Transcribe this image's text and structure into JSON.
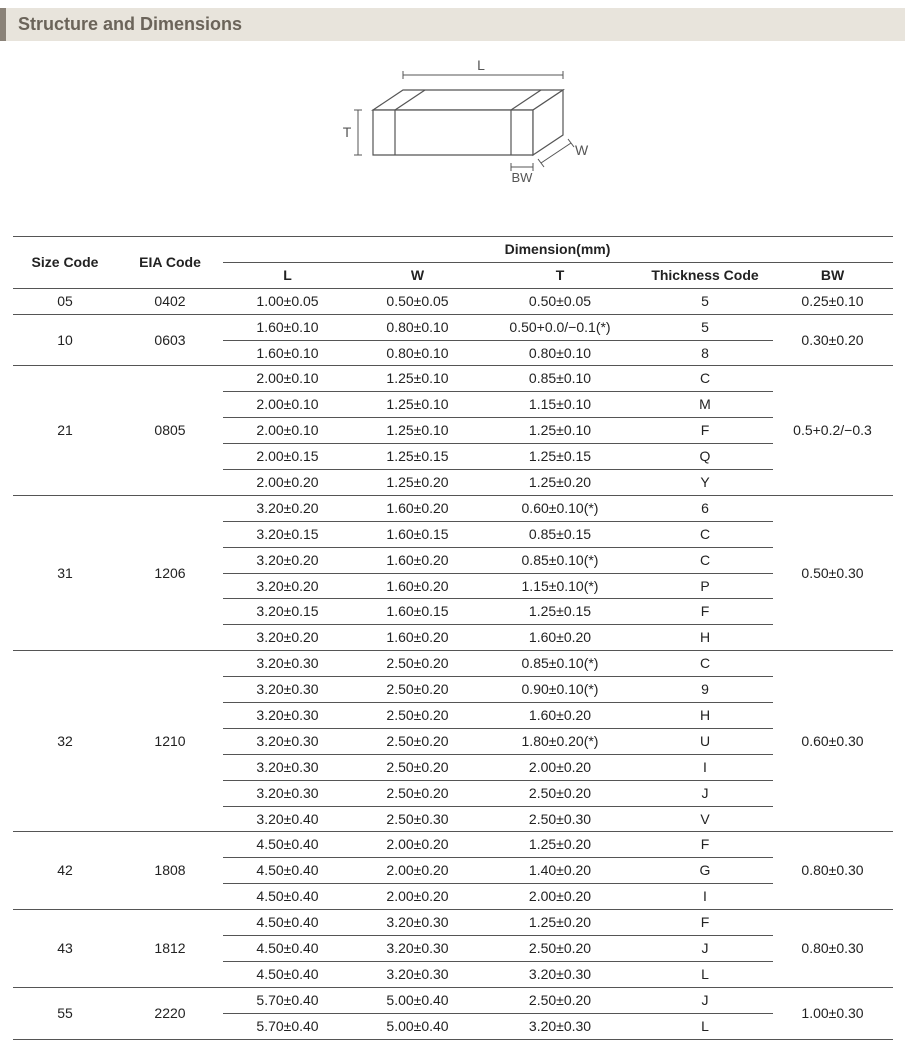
{
  "section_title": "Structure and Dimensions",
  "diagram": {
    "labels": {
      "L": "L",
      "W": "W",
      "T": "T",
      "BW": "BW"
    },
    "outline_color": "#555555",
    "fill_color": "#ffffff",
    "arrow_color": "#555555",
    "label_color": "#555555",
    "label_fontsize": 14
  },
  "table": {
    "header": {
      "size_code": "Size Code",
      "eia_code": "EIA Code",
      "dimension_header": "Dimension(mm)",
      "L": "L",
      "W": "W",
      "T": "T",
      "thickness_code": "Thickness  Code",
      "BW": "BW"
    },
    "groups": [
      {
        "size_code": "05",
        "eia_code": "0402",
        "bw": "0.25±0.10",
        "rows": [
          {
            "L": "1.00±0.05",
            "W": "0.50±0.05",
            "T": "0.50±0.05",
            "tk": "5"
          }
        ]
      },
      {
        "size_code": "10",
        "eia_code": "0603",
        "bw": "0.30±0.20",
        "rows": [
          {
            "L": "1.60±0.10",
            "W": "0.80±0.10",
            "T": "0.50+0.0/−0.1(*)",
            "tk": "5"
          },
          {
            "L": "1.60±0.10",
            "W": "0.80±0.10",
            "T": "0.80±0.10",
            "tk": "8"
          }
        ]
      },
      {
        "size_code": "21",
        "eia_code": "0805",
        "bw": "0.5+0.2/−0.3",
        "rows": [
          {
            "L": "2.00±0.10",
            "W": "1.25±0.10",
            "T": "0.85±0.10",
            "tk": "C"
          },
          {
            "L": "2.00±0.10",
            "W": "1.25±0.10",
            "T": "1.15±0.10",
            "tk": "M"
          },
          {
            "L": "2.00±0.10",
            "W": "1.25±0.10",
            "T": "1.25±0.10",
            "tk": "F"
          },
          {
            "L": "2.00±0.15",
            "W": "1.25±0.15",
            "T": "1.25±0.15",
            "tk": "Q"
          },
          {
            "L": "2.00±0.20",
            "W": "1.25±0.20",
            "T": "1.25±0.20",
            "tk": "Y"
          }
        ]
      },
      {
        "size_code": "31",
        "eia_code": "1206",
        "bw": "0.50±0.30",
        "rows": [
          {
            "L": "3.20±0.20",
            "W": "1.60±0.20",
            "T": "0.60±0.10(*)",
            "tk": "6"
          },
          {
            "L": "3.20±0.15",
            "W": "1.60±0.15",
            "T": "0.85±0.15",
            "tk": "C"
          },
          {
            "L": "3.20±0.20",
            "W": "1.60±0.20",
            "T": "0.85±0.10(*)",
            "tk": "C"
          },
          {
            "L": "3.20±0.20",
            "W": "1.60±0.20",
            "T": "1.15±0.10(*)",
            "tk": "P"
          },
          {
            "L": "3.20±0.15",
            "W": "1.60±0.15",
            "T": "1.25±0.15",
            "tk": "F"
          },
          {
            "L": "3.20±0.20",
            "W": "1.60±0.20",
            "T": "1.60±0.20",
            "tk": "H"
          }
        ]
      },
      {
        "size_code": "32",
        "eia_code": "1210",
        "bw": "0.60±0.30",
        "rows": [
          {
            "L": "3.20±0.30",
            "W": "2.50±0.20",
            "T": "0.85±0.10(*)",
            "tk": "C"
          },
          {
            "L": "3.20±0.30",
            "W": "2.50±0.20",
            "T": "0.90±0.10(*)",
            "tk": "9"
          },
          {
            "L": "3.20±0.30",
            "W": "2.50±0.20",
            "T": "1.60±0.20",
            "tk": "H"
          },
          {
            "L": "3.20±0.30",
            "W": "2.50±0.20",
            "T": "1.80±0.20(*)",
            "tk": "U"
          },
          {
            "L": "3.20±0.30",
            "W": "2.50±0.20",
            "T": "2.00±0.20",
            "tk": "I"
          },
          {
            "L": "3.20±0.30",
            "W": "2.50±0.20",
            "T": "2.50±0.20",
            "tk": "J"
          },
          {
            "L": "3.20±0.40",
            "W": "2.50±0.30",
            "T": "2.50±0.30",
            "tk": "V"
          }
        ]
      },
      {
        "size_code": "42",
        "eia_code": "1808",
        "bw": "0.80±0.30",
        "rows": [
          {
            "L": "4.50±0.40",
            "W": "2.00±0.20",
            "T": "1.25±0.20",
            "tk": "F"
          },
          {
            "L": "4.50±0.40",
            "W": "2.00±0.20",
            "T": "1.40±0.20",
            "tk": "G"
          },
          {
            "L": "4.50±0.40",
            "W": "2.00±0.20",
            "T": "2.00±0.20",
            "tk": "I"
          }
        ]
      },
      {
        "size_code": "43",
        "eia_code": "1812",
        "bw": "0.80±0.30",
        "rows": [
          {
            "L": "4.50±0.40",
            "W": "3.20±0.30",
            "T": "1.25±0.20",
            "tk": "F"
          },
          {
            "L": "4.50±0.40",
            "W": "3.20±0.30",
            "T": "2.50±0.20",
            "tk": "J"
          },
          {
            "L": "4.50±0.40",
            "W": "3.20±0.30",
            "T": "3.20±0.30",
            "tk": "L"
          }
        ]
      },
      {
        "size_code": "55",
        "eia_code": "2220",
        "bw": "1.00±0.30",
        "rows": [
          {
            "L": "5.70±0.40",
            "W": "5.00±0.40",
            "T": "2.50±0.20",
            "tk": "J"
          },
          {
            "L": "5.70±0.40",
            "W": "5.00±0.40",
            "T": "3.20±0.30",
            "tk": "L"
          }
        ]
      }
    ]
  }
}
